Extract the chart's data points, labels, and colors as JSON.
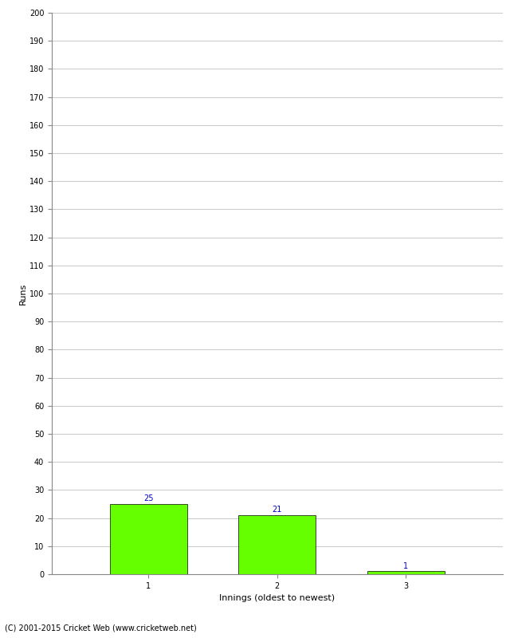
{
  "categories": [
    "1",
    "2",
    "3"
  ],
  "values": [
    25,
    21,
    1
  ],
  "bar_color": "#66ff00",
  "bar_edge_color": "#000000",
  "bar_width": 0.6,
  "value_label_color": "#0000cc",
  "value_label_fontsize": 7,
  "ylabel": "Runs",
  "xlabel": "Innings (oldest to newest)",
  "ylim": [
    0,
    200
  ],
  "yticks": [
    0,
    10,
    20,
    30,
    40,
    50,
    60,
    70,
    80,
    90,
    100,
    110,
    120,
    130,
    140,
    150,
    160,
    170,
    180,
    190,
    200
  ],
  "grid_color": "#cccccc",
  "background_color": "#ffffff",
  "footer_text": "(C) 2001-2015 Cricket Web (www.cricketweb.net)",
  "footer_fontsize": 7,
  "axis_label_fontsize": 8,
  "tick_fontsize": 7
}
